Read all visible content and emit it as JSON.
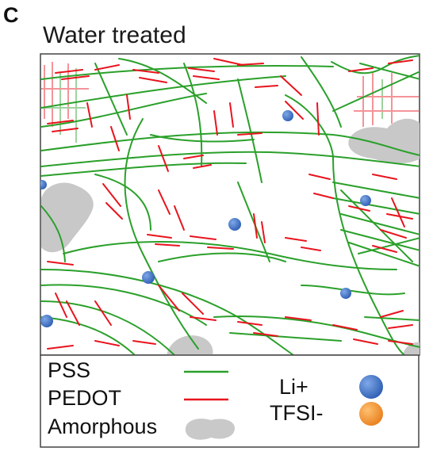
{
  "panel_letter": "C",
  "title": "Water treated",
  "legend": {
    "pss": {
      "label": "PSS",
      "color": "#2aa02a"
    },
    "pedot": {
      "label": "PEDOT",
      "color": "#e8141e"
    },
    "amorphous": {
      "label": "Amorphous",
      "color": "#c9c9c9"
    },
    "li": {
      "label": "Li+",
      "color": "#3a6fc4"
    },
    "tfsi": {
      "label": "TFSI-",
      "color": "#f0922a"
    }
  }
}
